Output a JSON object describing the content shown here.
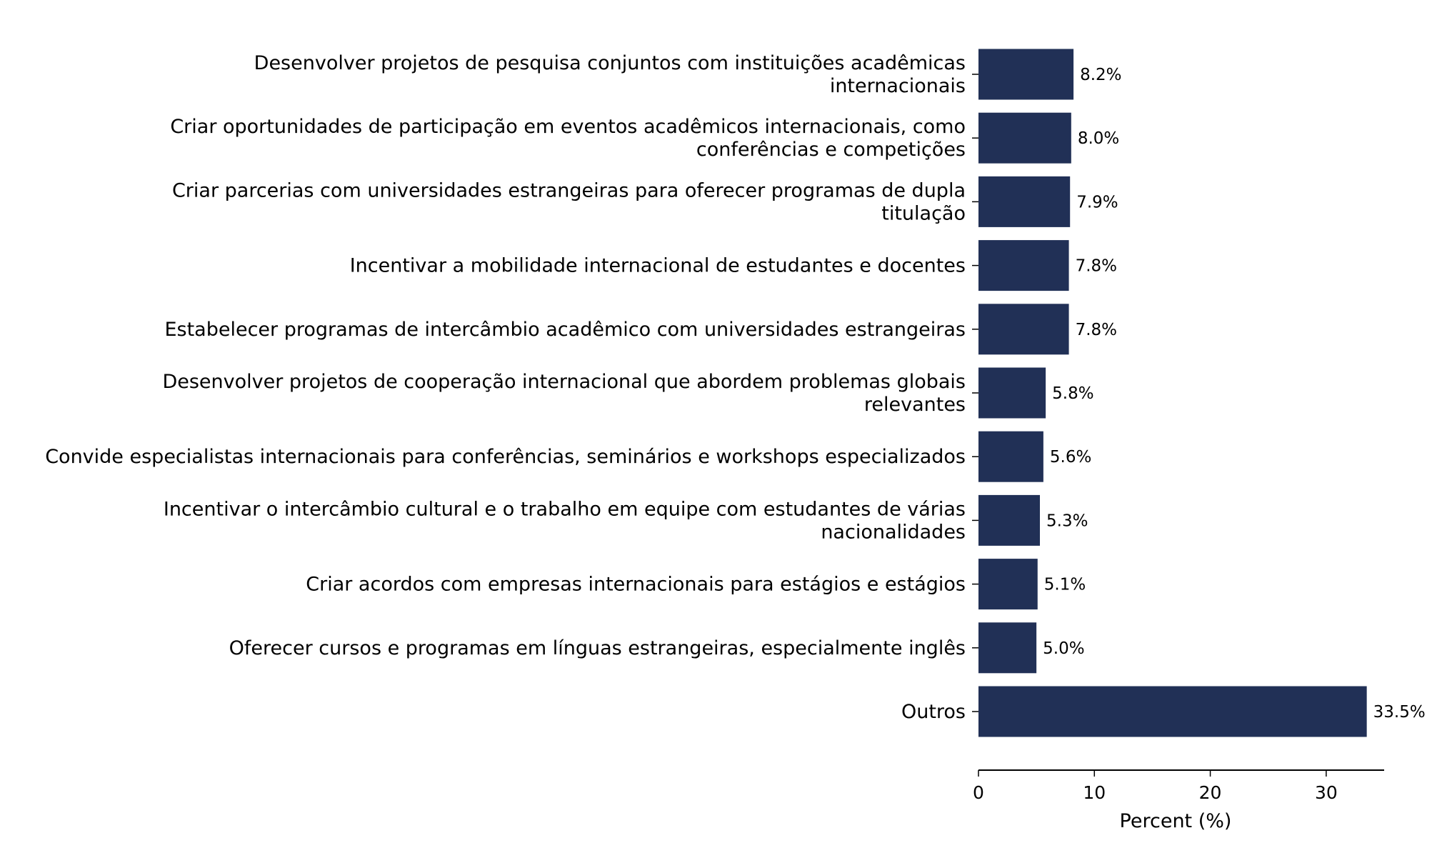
{
  "chart_data": {
    "type": "bar",
    "orientation": "horizontal",
    "categories": [
      [
        "Desenvolver projetos de pesquisa conjuntos com instituições acadêmicas",
        "internacionais"
      ],
      [
        "Criar oportunidades de participação em eventos acadêmicos internacionais, como",
        "conferências e competições"
      ],
      [
        "Criar parcerias com universidades estrangeiras para oferecer programas de dupla",
        "titulação"
      ],
      [
        "Incentivar a mobilidade internacional de estudantes e docentes"
      ],
      [
        "Estabelecer programas de intercâmbio acadêmico com universidades estrangeiras"
      ],
      [
        "Desenvolver projetos de cooperação internacional que abordem problemas globais",
        "relevantes"
      ],
      [
        "Convide especialistas internacionais para conferências, seminários e workshops especializados"
      ],
      [
        "Incentivar o intercâmbio cultural e o trabalho em equipe com estudantes de várias",
        "nacionalidades"
      ],
      [
        "Criar acordos com empresas internacionais para estágios e estágios"
      ],
      [
        "Oferecer cursos e programas em línguas estrangeiras, especialmente inglês"
      ],
      [
        "Outros"
      ]
    ],
    "values": [
      8.2,
      8.0,
      7.9,
      7.8,
      7.8,
      5.8,
      5.6,
      5.3,
      5.1,
      5.0,
      33.5
    ],
    "value_labels": [
      "8.2%",
      "8.0%",
      "7.9%",
      "7.8%",
      "7.8%",
      "5.8%",
      "5.6%",
      "5.3%",
      "5.1%",
      "5.0%",
      "33.5%"
    ],
    "xlabel": "Percent (%)",
    "ylabel": "",
    "title": "",
    "xlim": [
      0,
      35
    ],
    "xticks": [
      0,
      10,
      20,
      30
    ],
    "xtick_labels": [
      "0",
      "10",
      "20",
      "30"
    ],
    "grid": false,
    "bar_color": "#213056"
  }
}
